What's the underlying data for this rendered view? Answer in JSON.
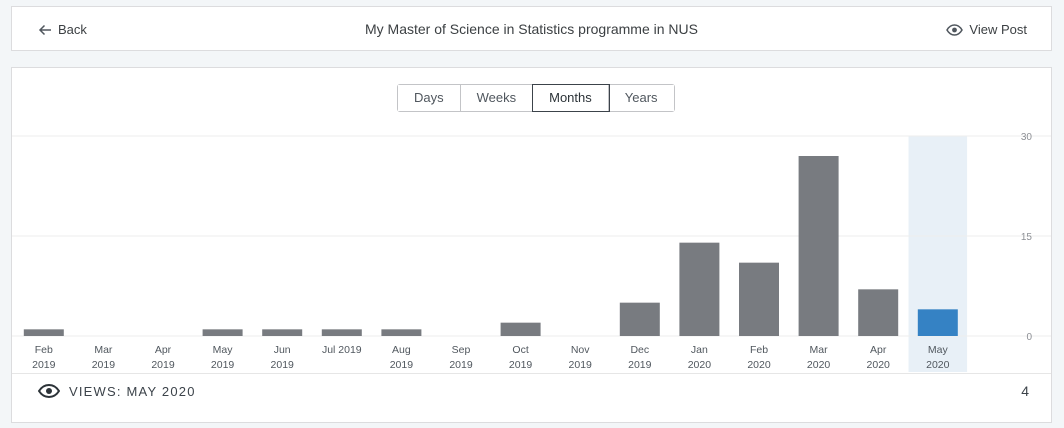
{
  "header": {
    "back_label": "Back",
    "title": "My Master of Science in Statistics programme in NUS",
    "view_post_label": "View Post"
  },
  "tabs": [
    {
      "label": "Days",
      "active": false
    },
    {
      "label": "Weeks",
      "active": false
    },
    {
      "label": "Months",
      "active": true
    },
    {
      "label": "Years",
      "active": false
    }
  ],
  "footer": {
    "label": "VIEWS: MAY 2020",
    "value": "4"
  },
  "colors": {
    "bar": "#787b80",
    "bar_selected": "#3582c4",
    "selected_column_bg": "#e8f0f7"
  },
  "chart_data": {
    "type": "bar",
    "categories": [
      [
        "Feb",
        "2019"
      ],
      [
        "Mar",
        "2019"
      ],
      [
        "Apr",
        "2019"
      ],
      [
        "May",
        "2019"
      ],
      [
        "Jun",
        "2019"
      ],
      [
        "Jul 2019",
        ""
      ],
      [
        "Aug",
        "2019"
      ],
      [
        "Sep",
        "2019"
      ],
      [
        "Oct",
        "2019"
      ],
      [
        "Nov",
        "2019"
      ],
      [
        "Dec",
        "2019"
      ],
      [
        "Jan",
        "2020"
      ],
      [
        "Feb",
        "2020"
      ],
      [
        "Mar",
        "2020"
      ],
      [
        "Apr",
        "2020"
      ],
      [
        "May",
        "2020"
      ]
    ],
    "values": [
      1,
      0,
      0,
      1,
      1,
      1,
      1,
      0,
      2,
      0,
      5,
      14,
      11,
      27,
      7,
      4
    ],
    "selected_index": 15,
    "ylim": [
      0,
      30
    ],
    "yticks": [
      0,
      15,
      30
    ],
    "grid": true,
    "y_axis_side": "right"
  }
}
